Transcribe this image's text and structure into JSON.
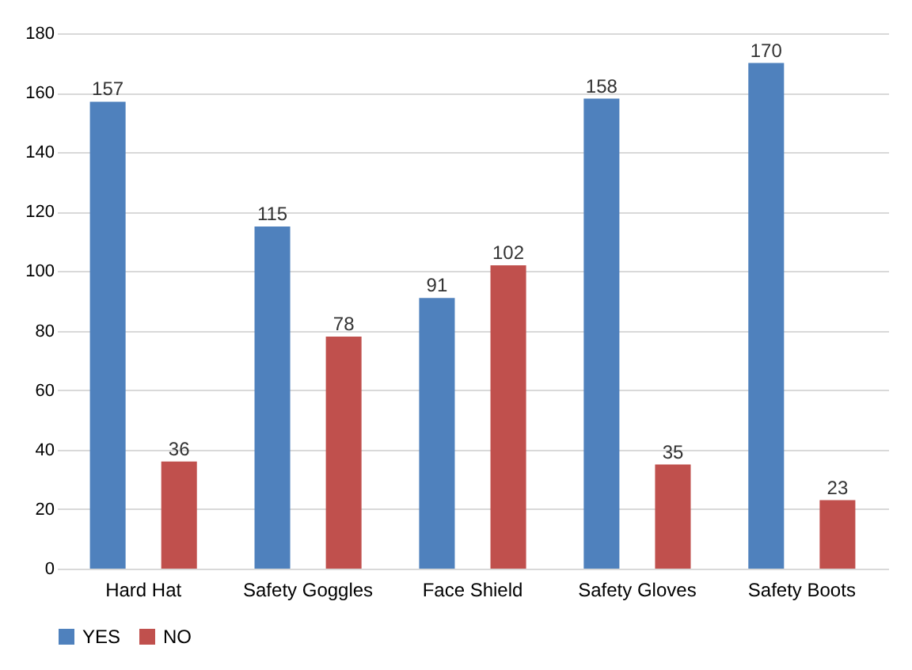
{
  "chart_data": {
    "type": "bar",
    "categories": [
      "Hard Hat",
      "Safety Goggles",
      "Face Shield",
      "Safety Gloves",
      "Safety Boots"
    ],
    "series": [
      {
        "name": "YES",
        "color": "#4f81bd",
        "values": [
          157,
          115,
          91,
          158,
          170
        ]
      },
      {
        "name": "NO",
        "color": "#c0504d",
        "values": [
          36,
          78,
          102,
          35,
          23
        ]
      }
    ],
    "ylim": [
      0,
      180
    ],
    "yticks": [
      0,
      20,
      40,
      60,
      80,
      100,
      120,
      140,
      160,
      180
    ],
    "grid": "y",
    "legend": "bottom",
    "data_labels": true
  }
}
